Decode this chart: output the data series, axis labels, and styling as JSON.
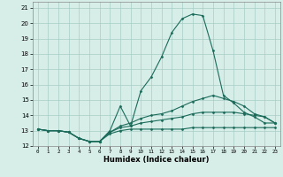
{
  "xlabel": "Humidex (Indice chaleur)",
  "background_color": "#d6ede8",
  "grid_color": "#a8cec6",
  "line_color": "#1a6b5a",
  "xlim": [
    -0.5,
    23.5
  ],
  "ylim": [
    12,
    21.4
  ],
  "xticks": [
    0,
    1,
    2,
    3,
    4,
    5,
    6,
    7,
    8,
    9,
    10,
    11,
    12,
    13,
    14,
    15,
    16,
    17,
    18,
    19,
    20,
    21,
    22,
    23
  ],
  "yticks": [
    12,
    13,
    14,
    15,
    16,
    17,
    18,
    19,
    20,
    21
  ],
  "lines": [
    {
      "x": [
        0,
        1,
        2,
        3,
        4,
        5,
        6,
        7,
        8,
        9,
        10,
        11,
        12,
        13,
        14,
        15,
        16,
        17,
        18,
        19,
        20,
        21,
        22,
        23
      ],
      "y": [
        13.1,
        13.0,
        13.0,
        12.9,
        12.5,
        12.3,
        12.3,
        13.0,
        14.6,
        13.3,
        15.6,
        16.5,
        17.8,
        19.4,
        20.3,
        20.6,
        20.5,
        18.2,
        15.3,
        14.8,
        14.2,
        13.9,
        13.5,
        13.5
      ]
    },
    {
      "x": [
        0,
        1,
        2,
        3,
        4,
        5,
        6,
        7,
        8,
        9,
        10,
        11,
        12,
        13,
        14,
        15,
        16,
        17,
        18,
        19,
        20,
        21,
        22,
        23
      ],
      "y": [
        13.1,
        13.0,
        13.0,
        12.9,
        12.5,
        12.3,
        12.3,
        12.9,
        13.3,
        13.5,
        13.8,
        14.0,
        14.1,
        14.3,
        14.6,
        14.9,
        15.1,
        15.3,
        15.1,
        14.9,
        14.6,
        14.1,
        13.9,
        13.5
      ]
    },
    {
      "x": [
        0,
        1,
        2,
        3,
        4,
        5,
        6,
        7,
        8,
        9,
        10,
        11,
        12,
        13,
        14,
        15,
        16,
        17,
        18,
        19,
        20,
        21,
        22,
        23
      ],
      "y": [
        13.1,
        13.0,
        13.0,
        12.9,
        12.5,
        12.3,
        12.3,
        12.9,
        13.2,
        13.3,
        13.5,
        13.6,
        13.7,
        13.8,
        13.9,
        14.1,
        14.2,
        14.2,
        14.2,
        14.2,
        14.1,
        14.0,
        13.9,
        13.5
      ]
    },
    {
      "x": [
        0,
        1,
        2,
        3,
        4,
        5,
        6,
        7,
        8,
        9,
        10,
        11,
        12,
        13,
        14,
        15,
        16,
        17,
        18,
        19,
        20,
        21,
        22,
        23
      ],
      "y": [
        13.1,
        13.0,
        13.0,
        12.9,
        12.5,
        12.3,
        12.3,
        12.8,
        13.0,
        13.1,
        13.1,
        13.1,
        13.1,
        13.1,
        13.1,
        13.2,
        13.2,
        13.2,
        13.2,
        13.2,
        13.2,
        13.2,
        13.2,
        13.2
      ]
    }
  ]
}
